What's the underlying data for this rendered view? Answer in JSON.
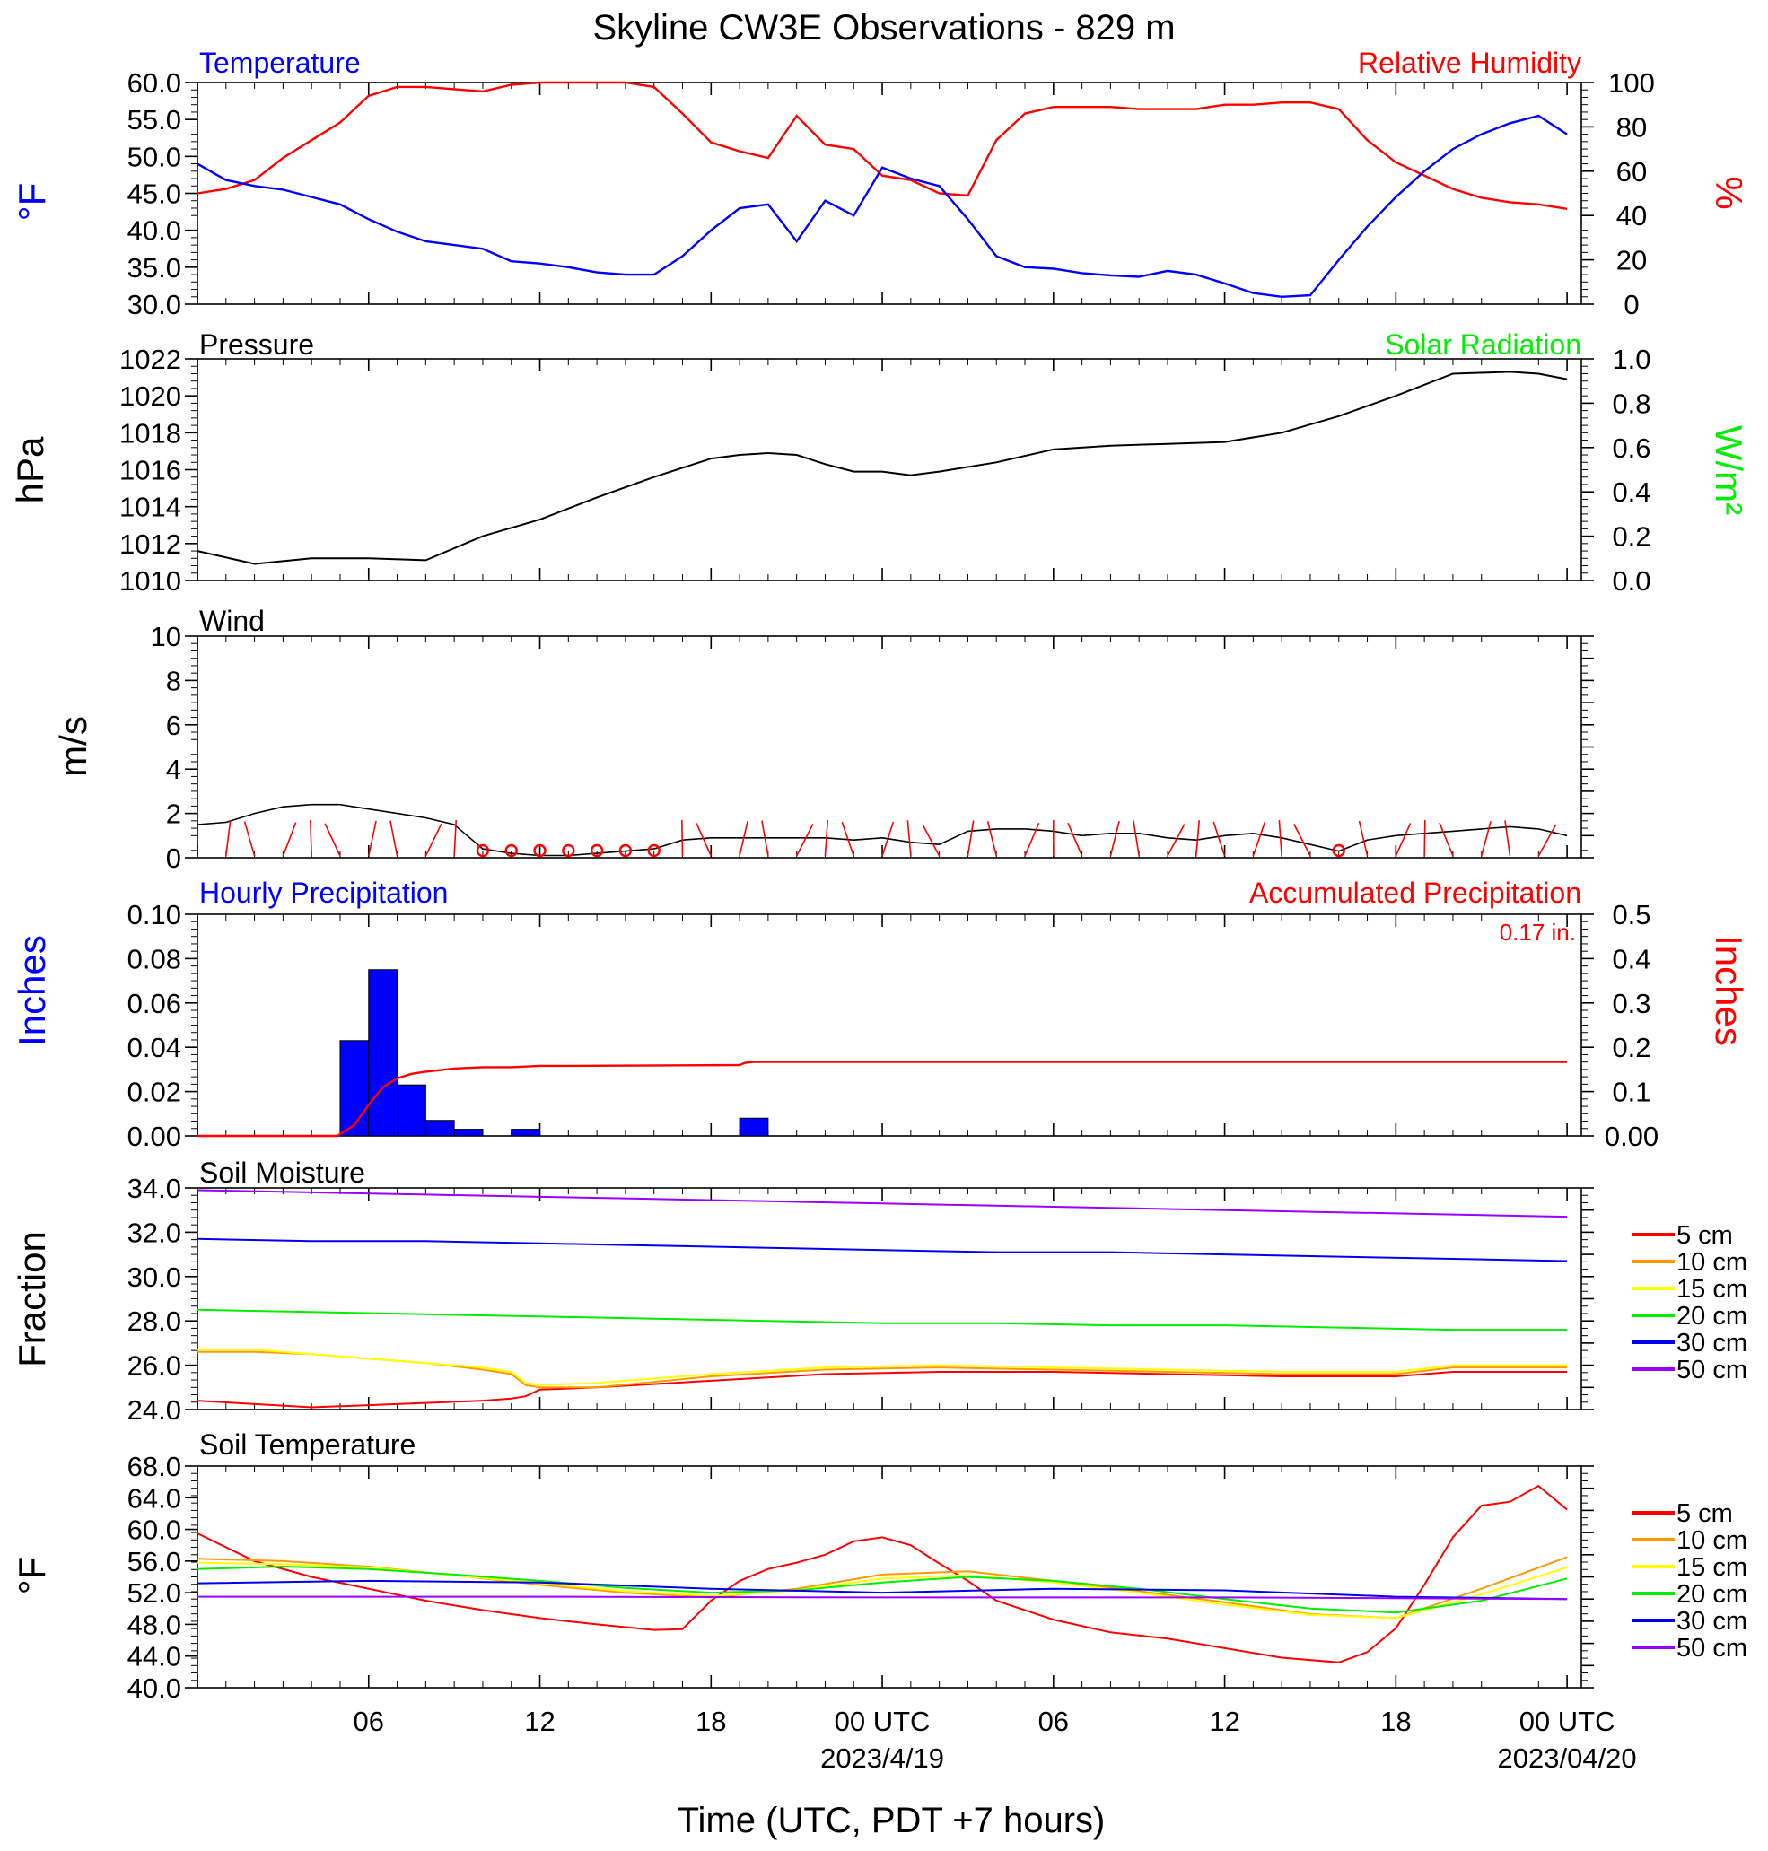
{
  "title": "Skyline CW3E Observations - 829 m",
  "x_axis": {
    "label": "Time (UTC, PDT +7 hours)",
    "ticks": [
      {
        "hour": 6,
        "label": "06",
        "date": ""
      },
      {
        "hour": 12,
        "label": "12",
        "date": ""
      },
      {
        "hour": 18,
        "label": "18",
        "date": ""
      },
      {
        "hour": 24,
        "label": "00 UTC",
        "date": "2023/4/19"
      },
      {
        "hour": 30,
        "label": "06",
        "date": ""
      },
      {
        "hour": 36,
        "label": "12",
        "date": ""
      },
      {
        "hour": 42,
        "label": "18",
        "date": ""
      },
      {
        "hour": 48,
        "label": "00 UTC",
        "date": "2023/04/20"
      }
    ]
  },
  "panels": {
    "temp_rh": {
      "left_title": "Temperature",
      "right_title": "Relative Humidity",
      "left_unit": "°F",
      "right_unit": "%",
      "left_ticks": [
        "60.0",
        "55.0",
        "50.0",
        "45.0",
        "40.0",
        "35.0",
        "30.0"
      ],
      "right_ticks": [
        "100",
        "80",
        "60",
        "40",
        "20",
        "0"
      ]
    },
    "pressure": {
      "left_title": "Pressure",
      "right_title": "Solar Radiation",
      "left_unit": "hPa",
      "right_unit": "W/m²",
      "left_ticks": [
        "1022",
        "1020",
        "1018",
        "1016",
        "1014",
        "1012",
        "1010"
      ],
      "right_ticks": [
        "1.0",
        "0.8",
        "0.6",
        "0.4",
        "0.2",
        "0.0"
      ]
    },
    "wind": {
      "left_title": "Wind",
      "left_unit": "m/s",
      "left_ticks": [
        "10",
        "8",
        "6",
        "4",
        "2",
        "0"
      ]
    },
    "precip": {
      "left_title": "Hourly Precipitation",
      "right_title": "Accumulated Precipitation",
      "left_unit": "Inches",
      "right_unit": "Inches",
      "total_label": "0.17 in.",
      "left_ticks": [
        "0.10",
        "0.08",
        "0.06",
        "0.04",
        "0.02",
        "0.00"
      ],
      "right_ticks": [
        "0.5",
        "0.4",
        "0.3",
        "0.2",
        "0.1",
        "0.00"
      ]
    },
    "soil_moisture": {
      "left_title": "Soil Moisture",
      "left_unit": "Fraction",
      "left_ticks": [
        "34.0",
        "32.0",
        "30.0",
        "28.0",
        "26.0",
        "24.0"
      ]
    },
    "soil_temp": {
      "left_title": "Soil Temperature",
      "left_unit": "°F",
      "left_ticks": [
        "68.0",
        "64.0",
        "60.0",
        "56.0",
        "52.0",
        "48.0",
        "44.0",
        "40.0"
      ]
    }
  },
  "legend": {
    "labels": [
      "5 cm",
      "10 cm",
      "15 cm",
      "20 cm",
      "30 cm",
      "50 cm"
    ],
    "colors": [
      "#ff0000",
      "#ff9900",
      "#ffff00",
      "#00ee00",
      "#0000ee",
      "#9900ff"
    ]
  },
  "colors": {
    "temperature": "#0000ff",
    "humidity": "#ff0000",
    "pressure": "#000000",
    "solar": "#00ee00",
    "wind": "#000000",
    "barb": "#ff0000",
    "hourly_precip": "#0000ff",
    "accum_precip": "#ff0000"
  },
  "chart_data": [
    {
      "type": "line",
      "title": "Temperature / Relative Humidity",
      "x_unit": "hours since 2023-04-18 00 UTC",
      "ylim_left": [
        30,
        60
      ],
      "ylim_right": [
        0,
        100
      ],
      "series": [
        {
          "name": "Temperature",
          "axis": "left",
          "x": [
            0,
            1,
            2,
            3,
            4,
            5,
            6,
            7,
            8,
            9,
            10,
            11,
            12,
            13,
            14,
            15,
            16,
            17,
            18,
            19,
            20,
            21,
            22,
            23,
            24,
            25,
            26,
            27,
            28,
            29,
            30,
            31,
            32,
            33,
            34,
            35,
            36,
            37,
            38,
            39,
            40,
            41,
            42,
            43,
            44,
            45,
            46,
            47,
            48
          ],
          "values": [
            49,
            46.8,
            46,
            45.5,
            44.5,
            43.5,
            41.5,
            39.8,
            38.5,
            38,
            37.5,
            35.8,
            35.5,
            35,
            34.3,
            34,
            34,
            36.5,
            40,
            43,
            43.5,
            38.5,
            44,
            42,
            48.5,
            47,
            46,
            41.5,
            36.5,
            35,
            34.8,
            34.2,
            33.9,
            33.7,
            34.5,
            34,
            32.8,
            31.5,
            31,
            31.2,
            36,
            40.5,
            44.5,
            48,
            51,
            53,
            54.5,
            55.5,
            53
          ]
        },
        {
          "name": "Relative Humidity",
          "axis": "right",
          "x": [
            0,
            1,
            2,
            3,
            4,
            5,
            6,
            7,
            8,
            9,
            10,
            11,
            12,
            13,
            14,
            15,
            16,
            17,
            18,
            19,
            20,
            21,
            22,
            23,
            24,
            25,
            26,
            27,
            28,
            29,
            30,
            31,
            32,
            33,
            34,
            35,
            36,
            37,
            38,
            39,
            40,
            41,
            42,
            43,
            44,
            45,
            46,
            47,
            48
          ],
          "values": [
            50,
            52,
            56,
            66,
            74,
            82,
            94,
            98,
            98,
            97,
            96,
            99,
            100,
            100,
            100,
            100,
            98,
            86,
            73,
            69,
            66,
            85,
            72,
            70,
            58,
            56,
            50,
            49,
            74,
            86,
            89,
            89,
            89,
            88,
            88,
            88,
            90,
            90,
            91,
            91,
            88,
            74,
            64,
            58,
            52,
            48,
            46,
            45,
            43
          ]
        }
      ]
    },
    {
      "type": "line",
      "title": "Pressure",
      "ylim_left": [
        1010,
        1022
      ],
      "ylim_right": [
        0,
        1
      ],
      "series": [
        {
          "name": "Pressure",
          "axis": "left",
          "x": [
            0,
            2,
            4,
            6,
            8,
            10,
            12,
            14,
            16,
            18,
            19,
            20,
            21,
            22,
            23,
            24,
            25,
            26,
            28,
            30,
            32,
            34,
            36,
            38,
            40,
            42,
            44,
            46,
            47,
            48
          ],
          "values": [
            1011.6,
            1010.9,
            1011.2,
            1011.2,
            1011.1,
            1012.4,
            1013.3,
            1014.5,
            1015.6,
            1016.6,
            1016.8,
            1016.9,
            1016.8,
            1016.3,
            1015.9,
            1015.9,
            1015.7,
            1015.9,
            1016.4,
            1017.1,
            1017.3,
            1017.4,
            1017.5,
            1018.0,
            1018.9,
            1020.0,
            1021.2,
            1021.3,
            1021.2,
            1020.9
          ]
        }
      ]
    },
    {
      "type": "line",
      "title": "Wind",
      "ylim": [
        0,
        10
      ],
      "series": [
        {
          "name": "Wind speed",
          "x": [
            0,
            1,
            2,
            3,
            4,
            5,
            6,
            7,
            8,
            9,
            10,
            11,
            12,
            13,
            14,
            15,
            16,
            17,
            18,
            19,
            20,
            21,
            22,
            23,
            24,
            25,
            26,
            27,
            28,
            29,
            30,
            31,
            32,
            33,
            34,
            35,
            36,
            37,
            38,
            39,
            40,
            41,
            42,
            43,
            44,
            45,
            46,
            47,
            48
          ],
          "values": [
            1.5,
            1.6,
            2.0,
            2.3,
            2.4,
            2.4,
            2.2,
            2.0,
            1.8,
            1.5,
            0.4,
            0.2,
            0.1,
            0.1,
            0.2,
            0.3,
            0.4,
            0.8,
            0.9,
            0.9,
            0.9,
            0.9,
            0.9,
            0.8,
            0.9,
            0.7,
            0.6,
            1.2,
            1.3,
            1.3,
            1.2,
            1.0,
            1.1,
            1.1,
            0.9,
            0.8,
            1.0,
            1.1,
            0.9,
            0.6,
            0.3,
            0.8,
            1.0,
            1.1,
            1.2,
            1.3,
            1.4,
            1.3,
            1.0
          ]
        }
      ]
    },
    {
      "type": "bar",
      "title": "Hourly Precipitation",
      "ylim_left": [
        0,
        0.1
      ],
      "ylim_right": [
        0,
        0.5
      ],
      "bars": {
        "name": "Hourly Precipitation",
        "hours": [
          5,
          6,
          7,
          8,
          9,
          11,
          19
        ],
        "values": [
          0.043,
          0.075,
          0.023,
          0.007,
          0.003,
          0.003,
          0.008
        ]
      },
      "series": [
        {
          "name": "Accumulated Precipitation",
          "axis": "right",
          "x": [
            0,
            4.9,
            5.5,
            6,
            6.5,
            7,
            7.5,
            8,
            9,
            10,
            11,
            12,
            13,
            19,
            19.2,
            19.5,
            48
          ],
          "values": [
            0,
            0,
            0.025,
            0.07,
            0.11,
            0.13,
            0.14,
            0.145,
            0.152,
            0.155,
            0.155,
            0.158,
            0.158,
            0.16,
            0.165,
            0.167,
            0.167
          ]
        }
      ]
    },
    {
      "type": "line",
      "title": "Soil Moisture",
      "ylim": [
        24,
        34
      ],
      "series": [
        {
          "name": "5 cm",
          "x": [
            0,
            4,
            8,
            10,
            11,
            11.5,
            12,
            14,
            18,
            22,
            26,
            30,
            34,
            38,
            42,
            44,
            48
          ],
          "values": [
            24.4,
            24.1,
            24.3,
            24.4,
            24.5,
            24.6,
            24.9,
            25.0,
            25.3,
            25.6,
            25.7,
            25.7,
            25.6,
            25.5,
            25.5,
            25.7,
            25.7
          ]
        },
        {
          "name": "10 cm",
          "x": [
            0,
            2,
            4,
            6,
            8,
            10,
            11,
            11.5,
            12,
            14,
            18,
            22,
            26,
            30,
            34,
            38,
            42,
            44,
            48
          ],
          "values": [
            26.6,
            26.6,
            26.5,
            26.3,
            26.1,
            25.8,
            25.6,
            25.1,
            25.0,
            25.0,
            25.5,
            25.8,
            25.9,
            25.8,
            25.7,
            25.6,
            25.6,
            25.9,
            25.9
          ]
        },
        {
          "name": "15 cm",
          "x": [
            0,
            2,
            4,
            6,
            8,
            10,
            11,
            11.5,
            12,
            14,
            18,
            22,
            26,
            30,
            34,
            38,
            42,
            44,
            48
          ],
          "values": [
            26.7,
            26.7,
            26.5,
            26.3,
            26.1,
            25.9,
            25.7,
            25.2,
            25.1,
            25.2,
            25.6,
            25.9,
            26.0,
            25.9,
            25.8,
            25.7,
            25.7,
            26.0,
            26.0
          ]
        },
        {
          "name": "20 cm",
          "x": [
            0,
            4,
            8,
            12,
            16,
            20,
            24,
            28,
            32,
            36,
            40,
            44,
            48
          ],
          "values": [
            28.5,
            28.4,
            28.3,
            28.2,
            28.1,
            28.0,
            27.9,
            27.9,
            27.8,
            27.8,
            27.7,
            27.6,
            27.6
          ]
        },
        {
          "name": "30 cm",
          "x": [
            0,
            4,
            8,
            12,
            16,
            20,
            24,
            28,
            32,
            36,
            40,
            44,
            48
          ],
          "values": [
            31.7,
            31.6,
            31.6,
            31.5,
            31.4,
            31.3,
            31.2,
            31.1,
            31.1,
            31.0,
            30.9,
            30.8,
            30.7
          ]
        },
        {
          "name": "50 cm",
          "x": [
            0,
            4,
            8,
            12,
            16,
            20,
            24,
            28,
            32,
            36,
            40,
            44,
            48
          ],
          "values": [
            33.9,
            33.8,
            33.7,
            33.6,
            33.5,
            33.4,
            33.3,
            33.2,
            33.1,
            33.0,
            32.9,
            32.8,
            32.7
          ]
        }
      ]
    },
    {
      "type": "line",
      "title": "Soil Temperature",
      "ylim": [
        40,
        68
      ],
      "series": [
        {
          "name": "5 cm",
          "x": [
            0,
            2,
            4,
            6,
            8,
            10,
            12,
            14,
            16,
            17,
            18,
            19,
            20,
            21,
            22,
            23,
            24,
            25,
            26,
            27,
            28,
            30,
            32,
            34,
            36,
            38,
            40,
            41,
            42,
            43,
            44,
            45,
            46,
            47,
            48
          ],
          "values": [
            59.5,
            56,
            54,
            52.5,
            51,
            49.8,
            48.8,
            48,
            47.3,
            47.4,
            51,
            53.5,
            55,
            55.8,
            56.8,
            58.5,
            59,
            58,
            55.7,
            53.5,
            51,
            48.6,
            47,
            46.2,
            45,
            43.8,
            43.2,
            44.5,
            47.5,
            53,
            59,
            63,
            63.5,
            65.5,
            62.5
          ]
        },
        {
          "name": "10 cm",
          "x": [
            0,
            3,
            6,
            9,
            12,
            15,
            18,
            21,
            24,
            27,
            30,
            33,
            36,
            39,
            42,
            45,
            48
          ],
          "values": [
            56.3,
            56,
            55.3,
            54.2,
            53,
            52,
            51.4,
            52.5,
            54.3,
            54.7,
            53.5,
            52.2,
            50.8,
            49.3,
            48.8,
            52.5,
            56.5
          ]
        },
        {
          "name": "15 cm",
          "x": [
            0,
            3,
            6,
            9,
            12,
            15,
            18,
            21,
            24,
            27,
            30,
            33,
            36,
            39,
            42,
            45,
            48
          ],
          "values": [
            55.8,
            55.6,
            55.2,
            54.2,
            53.2,
            52.2,
            51.6,
            52.3,
            53.8,
            54.2,
            53.3,
            52.0,
            50.5,
            49.2,
            48.8,
            51.8,
            55.2
          ]
        },
        {
          "name": "20 cm",
          "x": [
            0,
            3,
            6,
            9,
            12,
            15,
            18,
            21,
            24,
            27,
            30,
            33,
            36,
            39,
            42,
            45,
            48
          ],
          "values": [
            55.0,
            55.3,
            55.0,
            54.3,
            53.5,
            52.6,
            52.0,
            52.3,
            53.3,
            54.0,
            53.5,
            52.5,
            51.2,
            50.0,
            49.5,
            51.0,
            53.8
          ]
        },
        {
          "name": "30 cm",
          "x": [
            0,
            6,
            12,
            18,
            24,
            30,
            36,
            42,
            48
          ],
          "values": [
            53.2,
            53.5,
            53.3,
            52.5,
            52.0,
            52.5,
            52.3,
            51.5,
            51.2
          ]
        },
        {
          "name": "50 cm",
          "x": [
            0,
            12,
            24,
            36,
            48
          ],
          "values": [
            51.5,
            51.5,
            51.4,
            51.4,
            51.2
          ]
        }
      ]
    }
  ]
}
